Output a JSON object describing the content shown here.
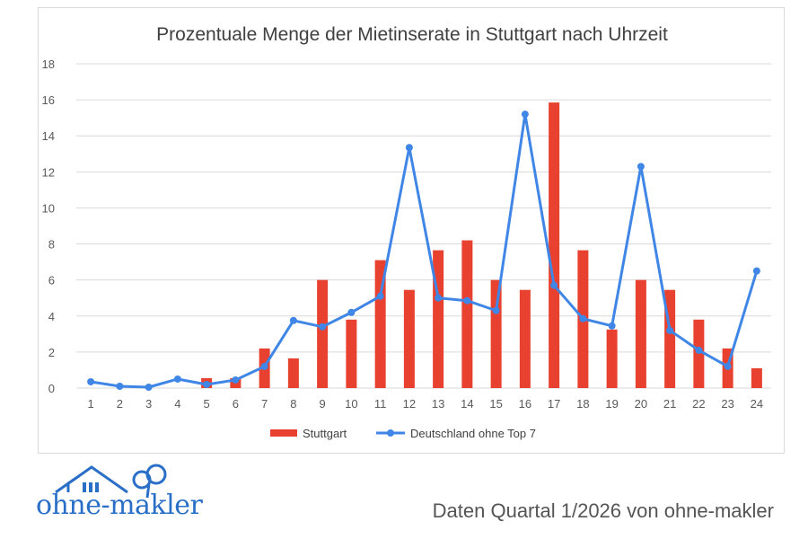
{
  "colors": {
    "bar": "#e8412f",
    "line": "#3f86e6",
    "grid": "#d9d9d9",
    "logo": "#2a6fc7"
  },
  "chart_data": {
    "type": "bar",
    "title": "Prozentuale Menge der Mietinserate in Stuttgart nach Uhrzeit",
    "categories": [
      "1",
      "2",
      "3",
      "4",
      "5",
      "6",
      "7",
      "8",
      "9",
      "10",
      "11",
      "12",
      "13",
      "14",
      "15",
      "16",
      "17",
      "18",
      "19",
      "20",
      "21",
      "22",
      "23",
      "24"
    ],
    "ylim": [
      0,
      18
    ],
    "yticks": [
      0,
      2,
      4,
      6,
      8,
      10,
      12,
      14,
      16,
      18
    ],
    "grid": true,
    "legend_position": "bottom",
    "series": [
      {
        "name": "Stuttgart",
        "type": "bar",
        "values": [
          0,
          0,
          0,
          0,
          0.55,
          0.55,
          2.2,
          1.65,
          6.0,
          3.8,
          7.1,
          5.45,
          7.65,
          8.2,
          6.0,
          5.45,
          15.85,
          7.65,
          3.25,
          6.0,
          5.45,
          3.8,
          2.2,
          1.1
        ]
      },
      {
        "name": "Deutschland ohne Top 7",
        "type": "line",
        "values": [
          0.35,
          0.1,
          0.05,
          0.5,
          0.2,
          0.45,
          1.2,
          3.75,
          3.4,
          4.2,
          5.1,
          13.35,
          5.0,
          4.85,
          4.3,
          15.2,
          5.7,
          3.85,
          3.45,
          12.3,
          3.2,
          2.1,
          1.2,
          6.5
        ]
      }
    ]
  },
  "branding": {
    "logo_text": "ohne-makler",
    "source_note": "Daten Quartal 1/2026 von ohne-makler"
  }
}
